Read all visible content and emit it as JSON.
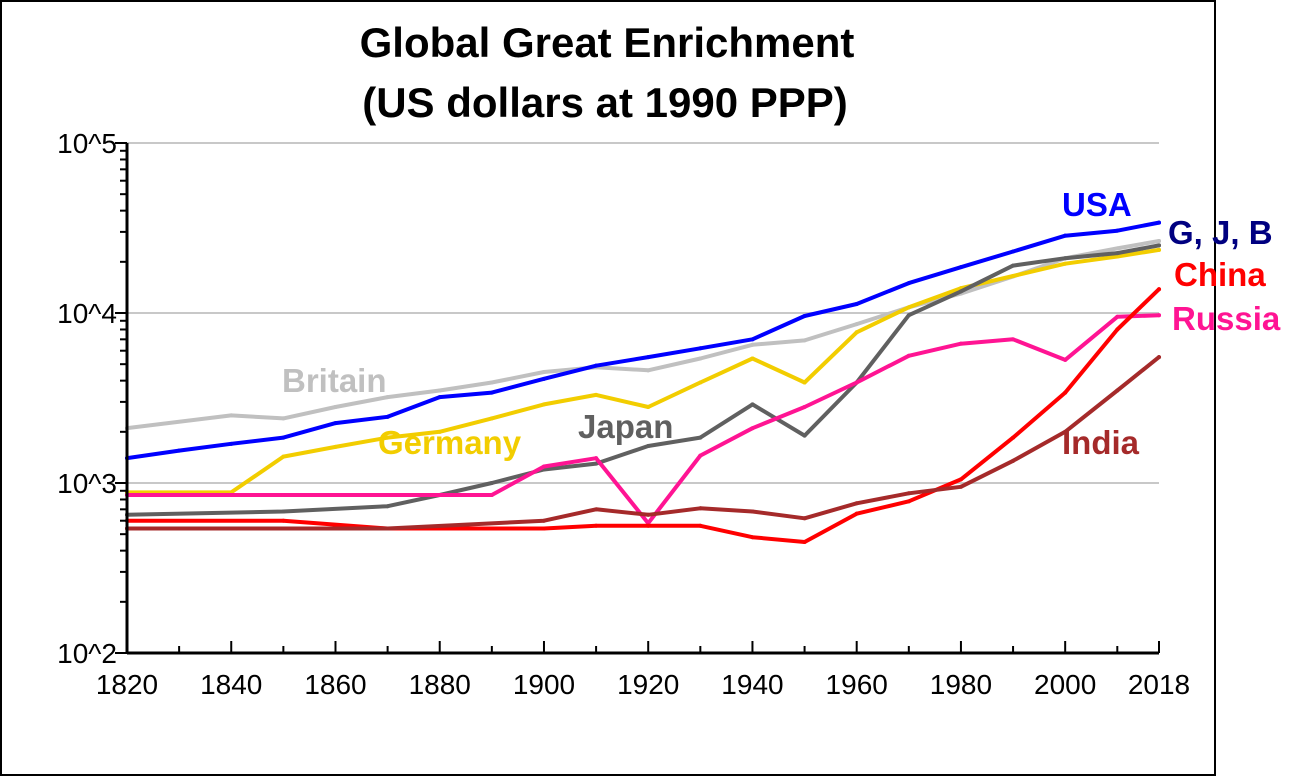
{
  "chart_data": {
    "type": "line",
    "title_lines": [
      "Global Great Enrichment",
      "(US dollars at 1990 PPP)"
    ],
    "xlabel": "",
    "ylabel": "",
    "x_ticks": [
      "1820",
      "1840",
      "1860",
      "1880",
      "1900",
      "1920",
      "1940",
      "1960",
      "1980",
      "2000",
      "2018"
    ],
    "y_ticks": [
      {
        "value": 100,
        "label": "10^2"
      },
      {
        "value": 1000,
        "label": "10^3"
      },
      {
        "value": 10000,
        "label": "10^4"
      },
      {
        "value": 100000,
        "label": "10^5"
      }
    ],
    "xlim": [
      1820,
      2018
    ],
    "ylim": [
      100,
      100000
    ],
    "y_scale": "log",
    "grid": {
      "horizontal": true,
      "vertical": false
    },
    "series": [
      {
        "name": "Britain",
        "color": "#c0c0c0",
        "x": [
          1820,
          1840,
          1850,
          1860,
          1870,
          1880,
          1890,
          1900,
          1910,
          1920,
          1930,
          1940,
          1950,
          1960,
          1970,
          1980,
          1990,
          2000,
          2010,
          2018
        ],
        "y": [
          2100,
          2500,
          2400,
          2800,
          3200,
          3500,
          3900,
          4500,
          4800,
          4600,
          5400,
          6500,
          6900,
          8600,
          10800,
          13000,
          16400,
          21000,
          24000,
          26500
        ]
      },
      {
        "name": "USA",
        "color": "#0000ff",
        "x": [
          1820,
          1830,
          1840,
          1850,
          1860,
          1870,
          1880,
          1890,
          1900,
          1910,
          1920,
          1930,
          1940,
          1950,
          1960,
          1970,
          1980,
          1990,
          2000,
          2010,
          2018
        ],
        "y": [
          1400,
          1550,
          1700,
          1850,
          2250,
          2450,
          3200,
          3400,
          4100,
          4900,
          5500,
          6200,
          7000,
          9600,
          11300,
          15000,
          18600,
          23000,
          28500,
          30500,
          34000
        ]
      },
      {
        "name": "Germany",
        "color": "#f2cd00",
        "x": [
          1820,
          1840,
          1850,
          1860,
          1870,
          1880,
          1890,
          1900,
          1910,
          1920,
          1930,
          1940,
          1950,
          1960,
          1970,
          1980,
          1990,
          2000,
          2010,
          2018
        ],
        "y": [
          880,
          880,
          1430,
          1630,
          1850,
          2000,
          2400,
          2900,
          3300,
          2800,
          3900,
          5400,
          3900,
          7700,
          10800,
          14000,
          16500,
          19500,
          21500,
          23500
        ]
      },
      {
        "name": "Japan",
        "color": "#606060",
        "x": [
          1820,
          1850,
          1870,
          1880,
          1890,
          1900,
          1910,
          1920,
          1930,
          1940,
          1950,
          1960,
          1970,
          1980,
          1990,
          2000,
          2010,
          2018
        ],
        "y": [
          650,
          680,
          730,
          850,
          1000,
          1200,
          1300,
          1650,
          1850,
          2900,
          1900,
          3900,
          9700,
          13400,
          19000,
          21000,
          22500,
          25000
        ]
      },
      {
        "name": "Russia",
        "color": "#ff1493",
        "x": [
          1820,
          1850,
          1870,
          1890,
          1900,
          1910,
          1920,
          1930,
          1940,
          1950,
          1960,
          1970,
          1980,
          1990,
          2000,
          2010,
          2018
        ],
        "y": [
          850,
          850,
          850,
          850,
          1250,
          1400,
          580,
          1450,
          2100,
          2800,
          3900,
          5600,
          6600,
          7000,
          5300,
          9500,
          9700
        ]
      },
      {
        "name": "China",
        "color": "#ff0000",
        "x": [
          1820,
          1850,
          1870,
          1900,
          1910,
          1920,
          1930,
          1940,
          1950,
          1960,
          1970,
          1980,
          1990,
          2000,
          2010,
          2018
        ],
        "y": [
          600,
          600,
          540,
          540,
          560,
          560,
          560,
          480,
          450,
          660,
          780,
          1050,
          1850,
          3400,
          8000,
          13800
        ]
      },
      {
        "name": "India",
        "color": "#a52a2a",
        "x": [
          1820,
          1850,
          1870,
          1900,
          1910,
          1920,
          1930,
          1940,
          1950,
          1960,
          1970,
          1980,
          1990,
          2000,
          2010,
          2018
        ],
        "y": [
          540,
          540,
          540,
          600,
          700,
          650,
          710,
          680,
          620,
          760,
          870,
          950,
          1350,
          2000,
          3500,
          5500
        ]
      }
    ],
    "annotations": [
      {
        "text": "USA",
        "color": "#0000ff"
      },
      {
        "text": "G, J, B",
        "color": "#000080"
      },
      {
        "text": "China",
        "color": "#ff0000"
      },
      {
        "text": "Russia",
        "color": "#ff1493"
      },
      {
        "text": "Britain",
        "color": "#c0c0c0"
      },
      {
        "text": "Germany",
        "color": "#f2cd00"
      },
      {
        "text": "Japan",
        "color": "#606060"
      },
      {
        "text": "India",
        "color": "#a52a2a"
      }
    ]
  }
}
